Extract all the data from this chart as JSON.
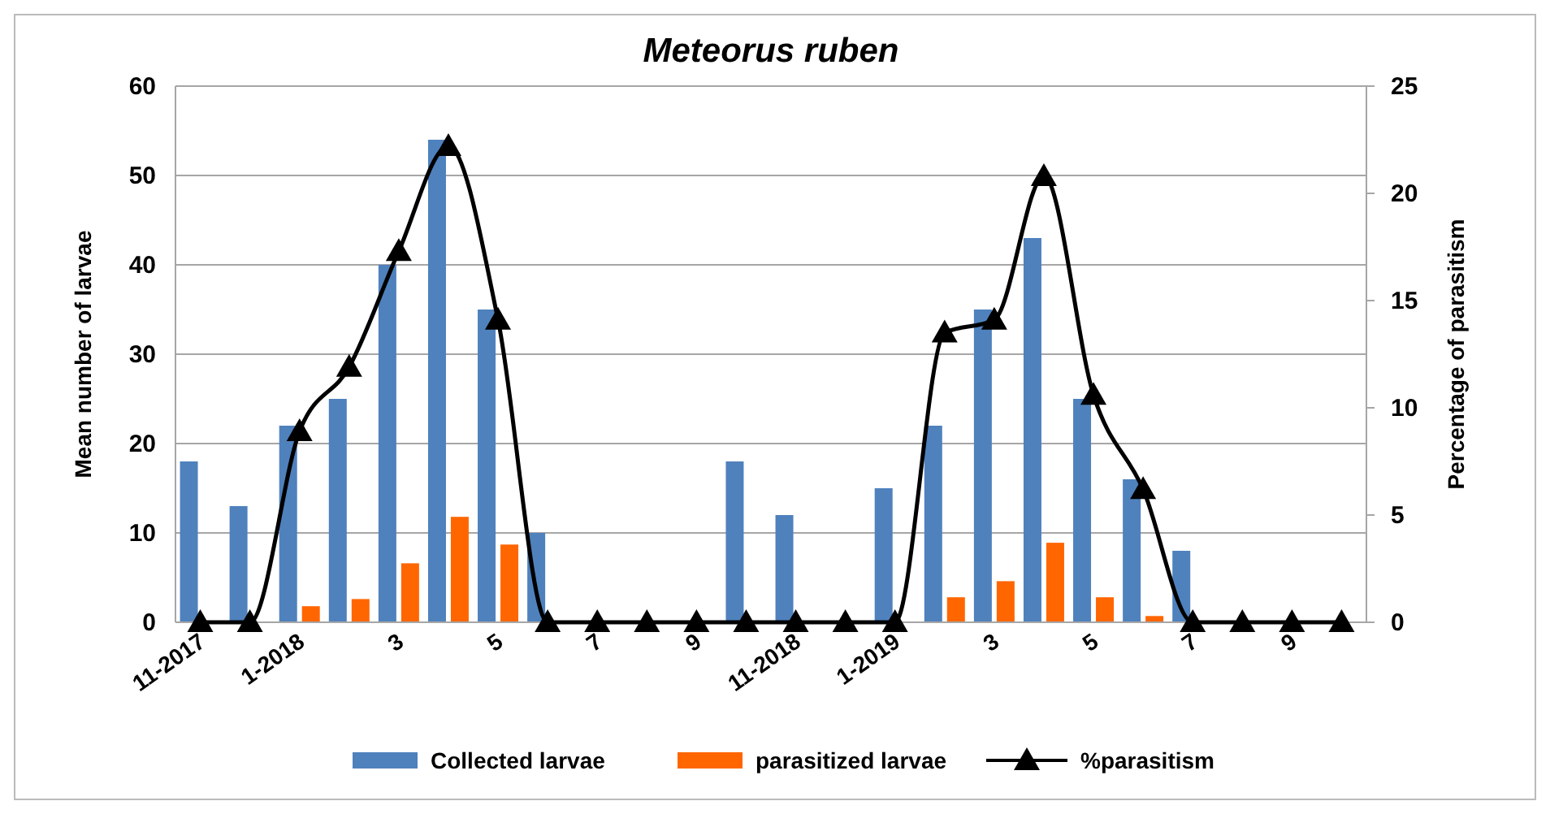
{
  "chart_data": {
    "type": "bar",
    "title": "Meteorus ruben",
    "ylabel": "Mean number of larvae",
    "y2label": "Percentage of parasitism",
    "categories": [
      "11-2017",
      null,
      "1-2018",
      null,
      "3",
      null,
      "5",
      null,
      "7",
      null,
      "9",
      null,
      "11-2018",
      null,
      "1-2019",
      null,
      "3",
      null,
      "5",
      null,
      "7",
      null,
      "9",
      null
    ],
    "series": [
      {
        "name": "Collected larvae",
        "color": "#4f81bd",
        "values": [
          18,
          13,
          22,
          25,
          40,
          54,
          35,
          10,
          0,
          0,
          0,
          18,
          12,
          0,
          15,
          22,
          35,
          43,
          25,
          16,
          8,
          0,
          0,
          0
        ]
      },
      {
        "name": "parasitized larvae",
        "color": "#ff6600",
        "values": [
          0,
          0,
          1.8,
          2.6,
          6.6,
          11.8,
          8.7,
          0,
          0,
          0,
          0,
          0,
          0,
          0,
          0,
          2.8,
          4.6,
          8.9,
          2.8,
          0.7,
          0,
          0,
          0,
          0
        ]
      },
      {
        "name": "%parasitism",
        "type": "line",
        "axis": "y2",
        "color": "#000000",
        "marker": "triangle",
        "values": [
          0,
          0,
          8.9,
          11.9,
          17.3,
          22.2,
          14.1,
          0,
          0,
          0,
          0,
          0,
          0,
          0,
          0,
          13.5,
          14.1,
          20.8,
          10.6,
          6.2,
          0,
          0,
          0,
          0
        ]
      }
    ],
    "ylim": [
      0,
      60
    ],
    "yticks": [
      0,
      10,
      20,
      30,
      40,
      50,
      60
    ],
    "y2lim": [
      0,
      25
    ],
    "y2ticks": [
      0,
      5,
      10,
      15,
      20,
      25
    ],
    "grid": "y",
    "legend": "bottom"
  }
}
